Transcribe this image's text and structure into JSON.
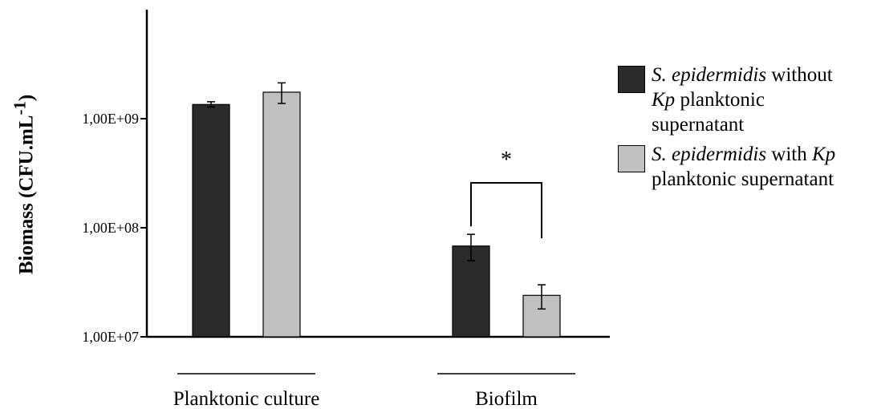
{
  "chart_data": {
    "type": "bar",
    "categories": [
      "Planktonic culture",
      "Biofilm"
    ],
    "ylabel_main": "Biomass (CFU.mL",
    "ylabel_sup": "-1",
    "ylabel_close": ")",
    "yscale": "log",
    "ylim": [
      10000000,
      10000000000
    ],
    "ytick_values": [
      10000000,
      100000000,
      1000000000
    ],
    "yticks": [
      "1,00E+07",
      "1,00E+08",
      "1,00E+09"
    ],
    "series": [
      {
        "name": "S. epidermidis without Kp planktonic supernatant",
        "color": "#2b2b2b",
        "values": [
          1350000000,
          68000000
        ],
        "err_low": [
          1280000000,
          50000000
        ],
        "err_high": [
          1430000000,
          87000000
        ]
      },
      {
        "name": "S. epidermidis with Kp planktonic supernatant",
        "color": "#c0c0c0",
        "values": [
          1750000000,
          24000000
        ],
        "err_low": [
          1380000000,
          18000000
        ],
        "err_high": [
          2130000000,
          30000000
        ]
      }
    ],
    "annotation": "*",
    "grid": false,
    "legend_position": "right"
  },
  "legend": {
    "item1": {
      "italic1": "S. epidermidis",
      "t1": " without ",
      "italic2": "Kp",
      "t2": " planktonic",
      "line3": "supernatant"
    },
    "item2": {
      "italic1": "S. epidermidis",
      "t1": " with ",
      "italic2": "Kp",
      "line2": "planktonic supernatant"
    }
  }
}
